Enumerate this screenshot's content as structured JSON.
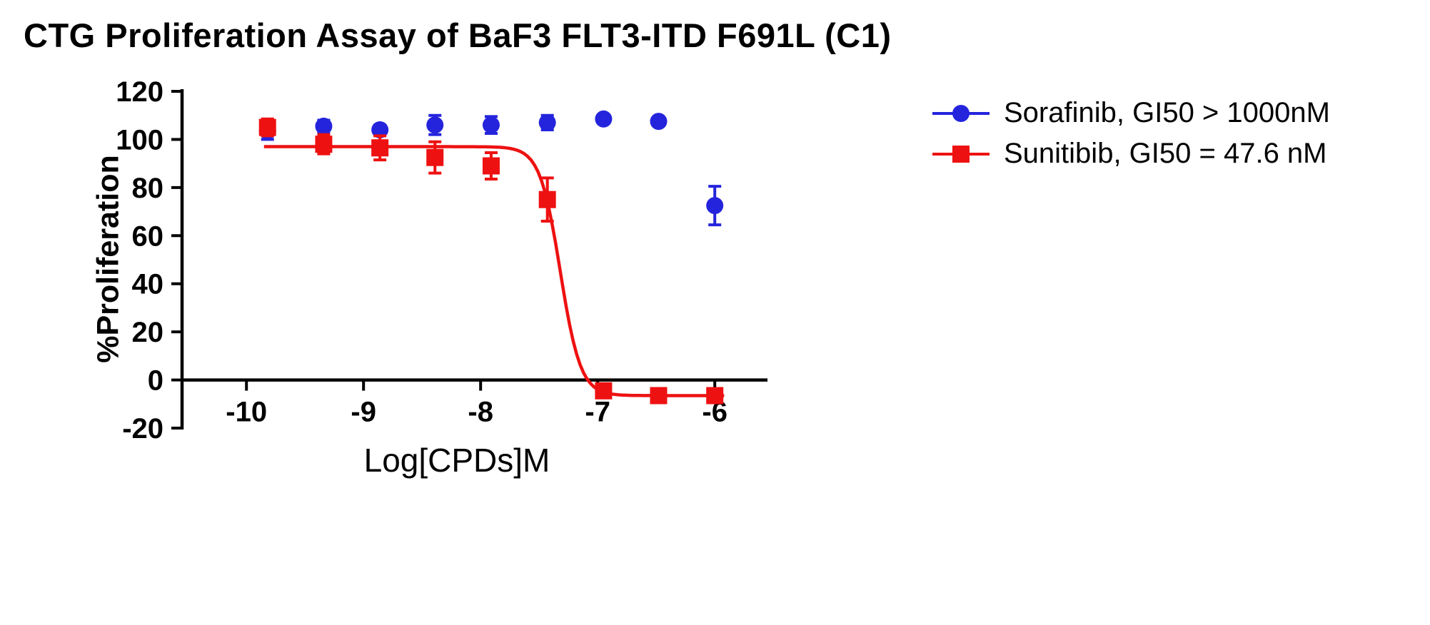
{
  "chart_data": {
    "type": "scatter",
    "title": "CTG Proliferation Assay of BaF3 FLT3-ITD F691L (C1)",
    "xlabel": "Log[CPDs]M",
    "ylabel": "%Proliferation",
    "xlim": [
      -10.55,
      -5.55
    ],
    "ylim": [
      -20,
      120
    ],
    "x_ticks": [
      -10,
      -9,
      -8,
      -7,
      -6
    ],
    "y_ticks": [
      120,
      100,
      80,
      60,
      40,
      20,
      0,
      -20
    ],
    "grid": false,
    "legend_position": "right",
    "series": [
      {
        "name": "Sorafinib, GI50 > 1000nM",
        "marker": "circle",
        "color": "#2424dd",
        "x": [
          -9.82,
          -9.34,
          -8.86,
          -8.39,
          -7.91,
          -7.43,
          -6.95,
          -6.48,
          -6.0
        ],
        "y": [
          103.5,
          105.5,
          104,
          106,
          106,
          107,
          108.5,
          107.5,
          72.5
        ],
        "yerr": [
          3.5,
          2.5,
          2,
          4,
          3.5,
          3,
          0,
          0,
          8
        ]
      },
      {
        "name": "Sunitibib, GI50 = 47.6 nM",
        "marker": "square",
        "color": "#ee1111",
        "x": [
          -9.82,
          -9.34,
          -8.86,
          -8.39,
          -7.91,
          -7.43,
          -6.95,
          -6.48,
          -6.0
        ],
        "y": [
          105,
          98,
          96.5,
          92.5,
          89,
          75,
          -4.5,
          -6.5,
          -6.5
        ],
        "yerr": [
          3.5,
          4,
          5,
          6.5,
          5.5,
          9,
          2.5,
          1.5,
          2
        ],
        "fit": {
          "model": "sigmoid",
          "top": 97,
          "bottom": -6.5,
          "log_gi50": -7.32,
          "hill": 5
        }
      }
    ]
  }
}
